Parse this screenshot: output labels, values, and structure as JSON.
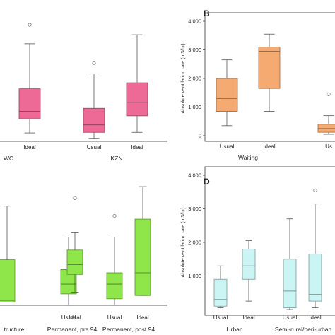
{
  "chart_data": [
    {
      "panel": "",
      "type": "boxplot",
      "ylabel": "",
      "ylim": [
        0,
        4000
      ],
      "yticks": [],
      "categories": [
        "Usual",
        "Ideal",
        "Usual",
        "Ideal"
      ],
      "category_labels": [
        "",
        "Ideal",
        "Usual",
        "Ideal"
      ],
      "groups": [
        {
          "label": "WC",
          "categories": [
            0,
            1
          ]
        },
        {
          "label": "KZN",
          "categories": [
            2,
            3
          ]
        }
      ],
      "box_color": "#ee6a96",
      "boxes": [
        null,
        {
          "whisker_low": 280,
          "q1": 750,
          "median": 1000,
          "q3": 1750,
          "whisker_high": 3250,
          "outliers": [
            3880
          ]
        },
        {
          "whisker_low": 100,
          "q1": 300,
          "median": 550,
          "q3": 1100,
          "whisker_high": 2250,
          "outliers": [
            2600
          ]
        },
        {
          "whisker_low": 300,
          "q1": 850,
          "median": 1300,
          "q3": 1950,
          "whisker_high": 3550,
          "outliers": []
        }
      ]
    },
    {
      "panel": "B",
      "type": "boxplot",
      "ylabel": "Absolute ventilation rate (m3/hr)",
      "ylim": [
        0,
        4000
      ],
      "yticks": [
        {
          "v": 0,
          "t": "0"
        },
        {
          "v": 1000,
          "t": "1,000"
        },
        {
          "v": 2000,
          "t": "2,000"
        },
        {
          "v": 3000,
          "t": "3,000"
        },
        {
          "v": 4000,
          "t": "4,000"
        }
      ],
      "categories": [
        "Usual",
        "Ideal",
        "Usual"
      ],
      "category_labels": [
        "Usual",
        "Ideal",
        "Us"
      ],
      "groups": [
        {
          "label": "Waiting",
          "categories": [
            0,
            1
          ]
        }
      ],
      "box_color": "#f4aa70",
      "boxes": [
        {
          "whisker_low": 350,
          "q1": 850,
          "median": 1300,
          "q3": 2000,
          "whisker_high": 2650,
          "outliers": []
        },
        {
          "whisker_low": 850,
          "q1": 1650,
          "median": 2950,
          "q3": 3100,
          "whisker_high": 3550,
          "outliers": []
        },
        {
          "whisker_low": 50,
          "q1": 120,
          "median": 250,
          "q3": 400,
          "whisker_high": 700,
          "outliers": [
            1450
          ]
        }
      ]
    },
    {
      "panel": "",
      "type": "boxplot",
      "ylabel": "",
      "ylim": [
        0,
        4000
      ],
      "yticks": [],
      "categories": [
        "Ideal",
        "Usual",
        "Ideal",
        "Usual",
        "Ideal"
      ],
      "category_labels": [
        "",
        "Usual",
        "Ideal",
        "Usual",
        "Ideal"
      ],
      "groups": [
        {
          "label": "tructure",
          "categories": [
            0
          ]
        },
        {
          "label": "Permanent, pre 94",
          "categories": [
            1,
            2
          ]
        },
        {
          "label": "Permanent, post 94",
          "categories": [
            3,
            4
          ]
        }
      ],
      "box_color": "#8ee64a",
      "boxes": [
        {
          "whisker_low": 100,
          "q1": 100,
          "median": 150,
          "q3": 1400,
          "whisker_high": 3050,
          "outliers": []
        },
        {
          "whisker_low": 0,
          "q1": 350,
          "median": 650,
          "q3": 1100,
          "whisker_high": 2100,
          "outliers": []
        },
        {
          "whisker_low": 400,
          "q1": 950,
          "median": 1250,
          "q3": 1700,
          "whisker_high": 2250,
          "outliers": [
            3300
          ]
        },
        {
          "whisker_low": 0,
          "q1": 200,
          "median": 650,
          "q3": 1000,
          "whisker_high": 2100,
          "outliers": [
            2750
          ]
        },
        {
          "whisker_low": 300,
          "q1": 300,
          "median": 1000,
          "q3": 2650,
          "whisker_high": 3650,
          "outliers": []
        }
      ]
    },
    {
      "panel": "D",
      "type": "boxplot",
      "ylabel": "Absolute ventilation rate (m3/hr)",
      "ylim": [
        0,
        4000
      ],
      "yticks": [
        {
          "v": 1000,
          "t": "1,000"
        },
        {
          "v": 2000,
          "t": "2,000"
        },
        {
          "v": 3000,
          "t": "3,000"
        },
        {
          "v": 4000,
          "t": "4,000"
        }
      ],
      "categories": [
        "Usual",
        "Ideal",
        "Usual",
        "Ideal"
      ],
      "category_labels": [
        "Usual",
        "Ideal",
        "Usual",
        "Ideal"
      ],
      "groups": [
        {
          "label": "Urban",
          "categories": [
            0,
            1
          ]
        },
        {
          "label": "Semi-rural/peri-urban",
          "categories": [
            2,
            3
          ]
        }
      ],
      "box_color": "#cbf5f4",
      "boxes": [
        {
          "whisker_low": 50,
          "q1": 100,
          "median": 300,
          "q3": 900,
          "whisker_high": 1300,
          "outliers": []
        },
        {
          "whisker_low": 250,
          "q1": 900,
          "median": 1300,
          "q3": 1800,
          "whisker_high": 2050,
          "outliers": []
        },
        {
          "whisker_low": 0,
          "q1": 50,
          "median": 550,
          "q3": 1500,
          "whisker_high": 2700,
          "outliers": []
        },
        {
          "whisker_low": 50,
          "q1": 250,
          "median": 450,
          "q3": 1650,
          "whisker_high": 3150,
          "outliers": [
            3550
          ]
        }
      ]
    }
  ]
}
